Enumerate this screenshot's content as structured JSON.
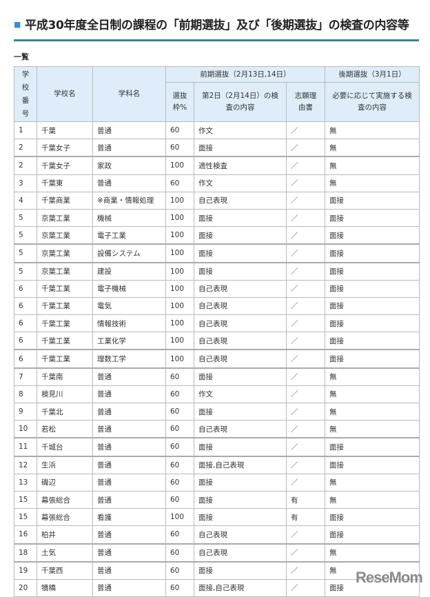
{
  "title": "平成30年度全日制の課程の「前期選抜」及び「後期選抜」の検査の内容等",
  "subtitle": "一覧",
  "headers": {
    "number": "学校番号",
    "school": "学校名",
    "dept": "学科名",
    "early": "前期選抜（2月13日,14日）",
    "late": "後期選抜（3月1日）",
    "quota": "選抜枠%",
    "day2": "第2日（2月14日）の検査の内容",
    "reason": "志願理由書",
    "late_exam": "必要に応じて実施する検査の内容"
  },
  "rows": [
    [
      "1",
      "千葉",
      "普通",
      "60",
      "作文",
      "／",
      "無"
    ],
    [
      "2",
      "千葉女子",
      "普通",
      "60",
      "面接",
      "／",
      "無"
    ],
    [
      "2",
      "千葉女子",
      "家政",
      "100",
      "適性検査",
      "／",
      "無"
    ],
    [
      "3",
      "千葉東",
      "普通",
      "60",
      "作文",
      "／",
      "無"
    ],
    [
      "4",
      "千葉商業",
      "※商業・情報処理",
      "100",
      "自己表現",
      "／",
      "面接"
    ],
    [
      "5",
      "京葉工業",
      "機械",
      "100",
      "面接",
      "／",
      "面接"
    ],
    [
      "5",
      "京葉工業",
      "電子工業",
      "100",
      "面接",
      "／",
      "面接"
    ],
    [
      "5",
      "京葉工業",
      "設備システム",
      "100",
      "面接",
      "／",
      "面接"
    ],
    [
      "5",
      "京葉工業",
      "建設",
      "100",
      "面接",
      "／",
      "面接"
    ],
    [
      "6",
      "千葉工業",
      "電子機械",
      "100",
      "自己表現",
      "／",
      "面接"
    ],
    [
      "6",
      "千葉工業",
      "電気",
      "100",
      "自己表現",
      "／",
      "面接"
    ],
    [
      "6",
      "千葉工業",
      "情報技術",
      "100",
      "自己表現",
      "／",
      "面接"
    ],
    [
      "6",
      "千葉工業",
      "工業化学",
      "100",
      "自己表現",
      "／",
      "面接"
    ],
    [
      "6",
      "千葉工業",
      "理数工学",
      "100",
      "自己表現",
      "／",
      "面接"
    ],
    [
      "7",
      "千葉南",
      "普通",
      "60",
      "面接",
      "／",
      "無"
    ],
    [
      "8",
      "検見川",
      "普通",
      "60",
      "作文",
      "／",
      "無"
    ],
    [
      "9",
      "千葉北",
      "普通",
      "60",
      "面接",
      "／",
      "無"
    ],
    [
      "10",
      "若松",
      "普通",
      "60",
      "自己表現",
      "／",
      "無"
    ],
    [
      "11",
      "千城台",
      "普通",
      "60",
      "面接",
      "／",
      "面接"
    ],
    [
      "12",
      "生浜",
      "普通",
      "60",
      "面接,自己表現",
      "／",
      "面接"
    ],
    [
      "13",
      "磯辺",
      "普通",
      "60",
      "面接",
      "／",
      "無"
    ],
    [
      "15",
      "幕張総合",
      "普通",
      "60",
      "面接",
      "有",
      "無"
    ],
    [
      "15",
      "幕張総合",
      "看護",
      "100",
      "面接",
      "有",
      "面接"
    ],
    [
      "16",
      "柏井",
      "普通",
      "60",
      "自己表現",
      "／",
      "面接"
    ],
    [
      "18",
      "土気",
      "普通",
      "60",
      "自己表現",
      "／",
      "無"
    ],
    [
      "19",
      "千葉西",
      "普通",
      "60",
      "面接",
      "／",
      "無"
    ],
    [
      "20",
      "犢橋",
      "普通",
      "60",
      "面接,自己表現",
      "／",
      "面接"
    ]
  ],
  "group_starts": [
    2,
    7,
    8,
    13,
    14,
    18,
    19,
    24,
    25
  ],
  "watermark": "ReseMom",
  "colors": {
    "header_bg": "#deedf9",
    "rule": "#3f7f8f",
    "bullet": "#3b8fc9"
  }
}
